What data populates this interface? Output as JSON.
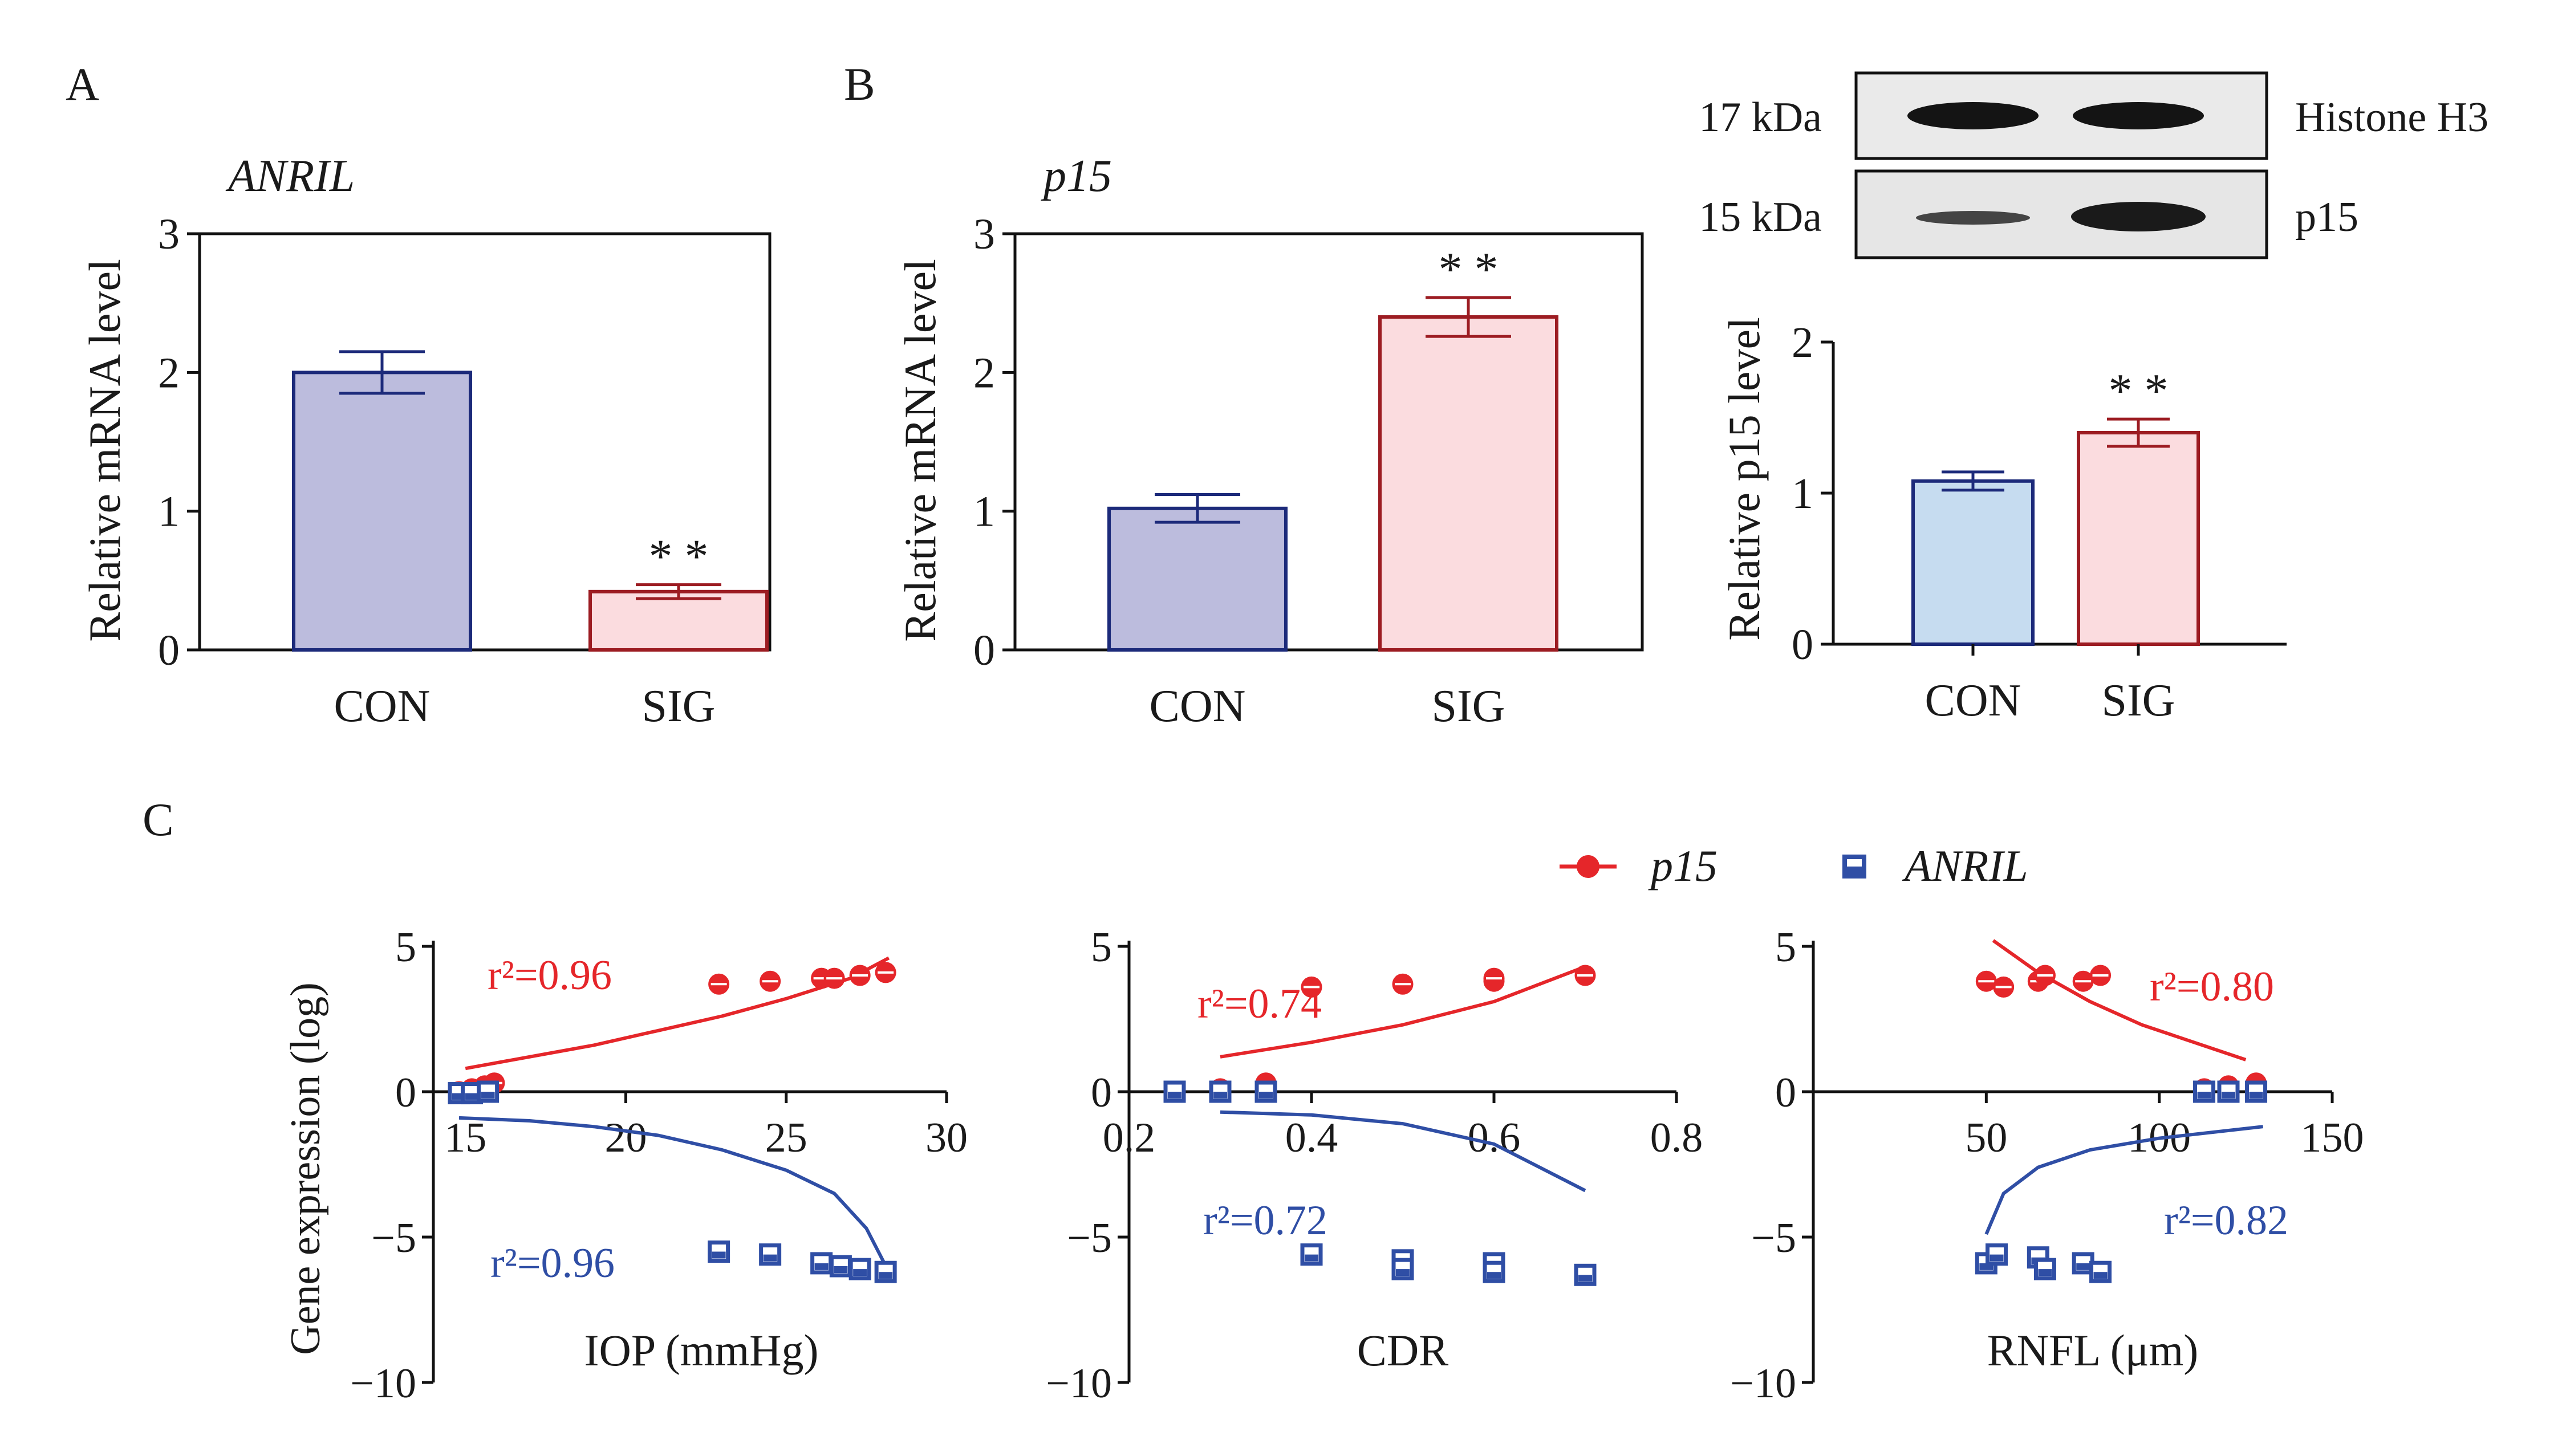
{
  "panels": {
    "a": "A",
    "b": "B",
    "c": "C"
  },
  "colors": {
    "con_fill": "#bcbcdd",
    "con_fill_c": "#c6dcf0",
    "con_edge": "#1c2a7a",
    "sig_fill": "#fbdcdf",
    "sig_edge": "#9c1c22",
    "p15": "#e5262a",
    "anril": "#2f4ea5",
    "axis": "#111111"
  },
  "chart_data": [
    {
      "id": "A",
      "type": "bar",
      "title": "ANRIL",
      "ylabel": "Relative mRNA level",
      "ylim": [
        0,
        3
      ],
      "yticks": [
        "0",
        "1",
        "2",
        "3"
      ],
      "categories": [
        "CON",
        "SIG"
      ],
      "values": [
        2.0,
        0.42
      ],
      "errors": [
        0.15,
        0.05
      ],
      "annotations": [
        "",
        "* *"
      ]
    },
    {
      "id": "B",
      "type": "bar",
      "title": "p15",
      "ylabel": "Relative mRNA level",
      "ylim": [
        0,
        3
      ],
      "yticks": [
        "0",
        "1",
        "2",
        "3"
      ],
      "categories": [
        "CON",
        "SIG"
      ],
      "values": [
        1.02,
        2.4
      ],
      "errors": [
        0.1,
        0.14
      ],
      "annotations": [
        "",
        "* *"
      ]
    },
    {
      "id": "B-western",
      "type": "bar",
      "title": "",
      "ylabel": "Relative p15 level",
      "ylim": [
        0,
        2
      ],
      "yticks": [
        "0",
        "1",
        "2"
      ],
      "categories": [
        "CON",
        "SIG"
      ],
      "values": [
        1.08,
        1.4
      ],
      "errors": [
        0.06,
        0.09
      ],
      "annotations": [
        "",
        "* *"
      ],
      "blot": {
        "rows": [
          {
            "size": "17 kDa",
            "protein": "Histone H3"
          },
          {
            "size": "15 kDa",
            "protein": "p15"
          }
        ]
      }
    },
    {
      "id": "C-IOP",
      "type": "scatter",
      "xlabel": "IOP (mmHg)",
      "ylabel": "Gene expression (log)",
      "xlim": [
        14,
        30
      ],
      "ylim": [
        -10,
        5
      ],
      "xticks": [
        15,
        20,
        25,
        30
      ],
      "yticks": [
        -10,
        -5,
        0,
        5
      ],
      "series": [
        {
          "name": "p15",
          "r2": "r²=0.96",
          "x": [
            14.8,
            15.2,
            15.6,
            15.9,
            22.9,
            24.5,
            26.1,
            26.5,
            27.3,
            28.1
          ],
          "y": [
            0.0,
            0.1,
            0.2,
            0.3,
            3.7,
            3.8,
            3.9,
            3.9,
            4.0,
            4.1
          ],
          "fit": [
            [
              15,
              0.8
            ],
            [
              17,
              1.2
            ],
            [
              19,
              1.6
            ],
            [
              21,
              2.1
            ],
            [
              23,
              2.6
            ],
            [
              25,
              3.2
            ],
            [
              27,
              3.9
            ],
            [
              28.2,
              4.6
            ]
          ]
        },
        {
          "name": "ANRIL",
          "r2": "r²=0.96",
          "x": [
            14.8,
            15.2,
            15.7,
            22.9,
            24.5,
            26.1,
            26.7,
            27.3,
            28.1
          ],
          "y": [
            -0.05,
            -0.05,
            0.0,
            -5.5,
            -5.6,
            -5.9,
            -6.0,
            -6.1,
            -6.2
          ],
          "fit": [
            [
              14.8,
              -0.9
            ],
            [
              17,
              -1.0
            ],
            [
              19,
              -1.2
            ],
            [
              21,
              -1.5
            ],
            [
              23,
              -2.0
            ],
            [
              25,
              -2.7
            ],
            [
              26.5,
              -3.5
            ],
            [
              27.5,
              -4.7
            ],
            [
              28.2,
              -6.2
            ]
          ]
        }
      ]
    },
    {
      "id": "C-CDR",
      "type": "scatter",
      "xlabel": "CDR",
      "ylabel": "",
      "xlim": [
        0.2,
        0.8
      ],
      "ylim": [
        -10,
        5
      ],
      "xticks": [
        0.2,
        0.4,
        0.6,
        0.8
      ],
      "yticks": [
        -10,
        -5,
        0,
        5
      ],
      "series": [
        {
          "name": "p15",
          "r2": "r²=0.74",
          "x": [
            0.25,
            0.3,
            0.35,
            0.35,
            0.4,
            0.5,
            0.6,
            0.6,
            0.7
          ],
          "y": [
            0.0,
            0.1,
            0.2,
            0.3,
            3.6,
            3.7,
            3.8,
            3.9,
            4.0
          ],
          "fit": [
            [
              0.3,
              1.2
            ],
            [
              0.4,
              1.7
            ],
            [
              0.5,
              2.3
            ],
            [
              0.6,
              3.1
            ],
            [
              0.7,
              4.3
            ]
          ]
        },
        {
          "name": "ANRIL",
          "r2": "r²=0.72",
          "x": [
            0.25,
            0.3,
            0.35,
            0.4,
            0.5,
            0.5,
            0.6,
            0.6,
            0.7
          ],
          "y": [
            0.0,
            0.0,
            0.0,
            -5.6,
            -5.8,
            -6.1,
            -5.9,
            -6.2,
            -6.3
          ],
          "fit": [
            [
              0.3,
              -0.7
            ],
            [
              0.4,
              -0.8
            ],
            [
              0.5,
              -1.1
            ],
            [
              0.6,
              -1.8
            ],
            [
              0.7,
              -3.4
            ]
          ]
        }
      ]
    },
    {
      "id": "C-RNFL",
      "type": "scatter",
      "xlabel": "RNFL (μm)",
      "ylabel": "",
      "xlim": [
        0,
        150
      ],
      "ylim": [
        -10,
        5
      ],
      "xticks": [
        50,
        100,
        150
      ],
      "yticks": [
        -10,
        -5,
        0,
        5
      ],
      "series": [
        {
          "name": "p15",
          "r2": "r²=0.80",
          "x": [
            50,
            55,
            65,
            67,
            78,
            83,
            113,
            120,
            128
          ],
          "y": [
            3.8,
            3.6,
            3.8,
            4.0,
            3.8,
            4.0,
            0.1,
            0.2,
            0.3
          ],
          "fit": [
            [
              52,
              5.2
            ],
            [
              65,
              4.1
            ],
            [
              80,
              3.1
            ],
            [
              95,
              2.3
            ],
            [
              110,
              1.7
            ],
            [
              125,
              1.1
            ]
          ]
        },
        {
          "name": "ANRIL",
          "r2": "r²=0.82",
          "x": [
            50,
            53,
            65,
            67,
            78,
            83,
            113,
            120,
            128
          ],
          "y": [
            -5.9,
            -5.6,
            -5.7,
            -6.1,
            -5.9,
            -6.2,
            0.0,
            0.0,
            0.0
          ],
          "fit": [
            [
              50,
              -4.9
            ],
            [
              55,
              -3.5
            ],
            [
              65,
              -2.6
            ],
            [
              80,
              -2.0
            ],
            [
              100,
              -1.6
            ],
            [
              130,
              -1.2
            ]
          ]
        }
      ]
    }
  ],
  "legend": {
    "p15": "p15",
    "anril": "ANRIL",
    "p15_icon": "circle-marker-icon",
    "anril_icon": "square-marker-icon"
  }
}
